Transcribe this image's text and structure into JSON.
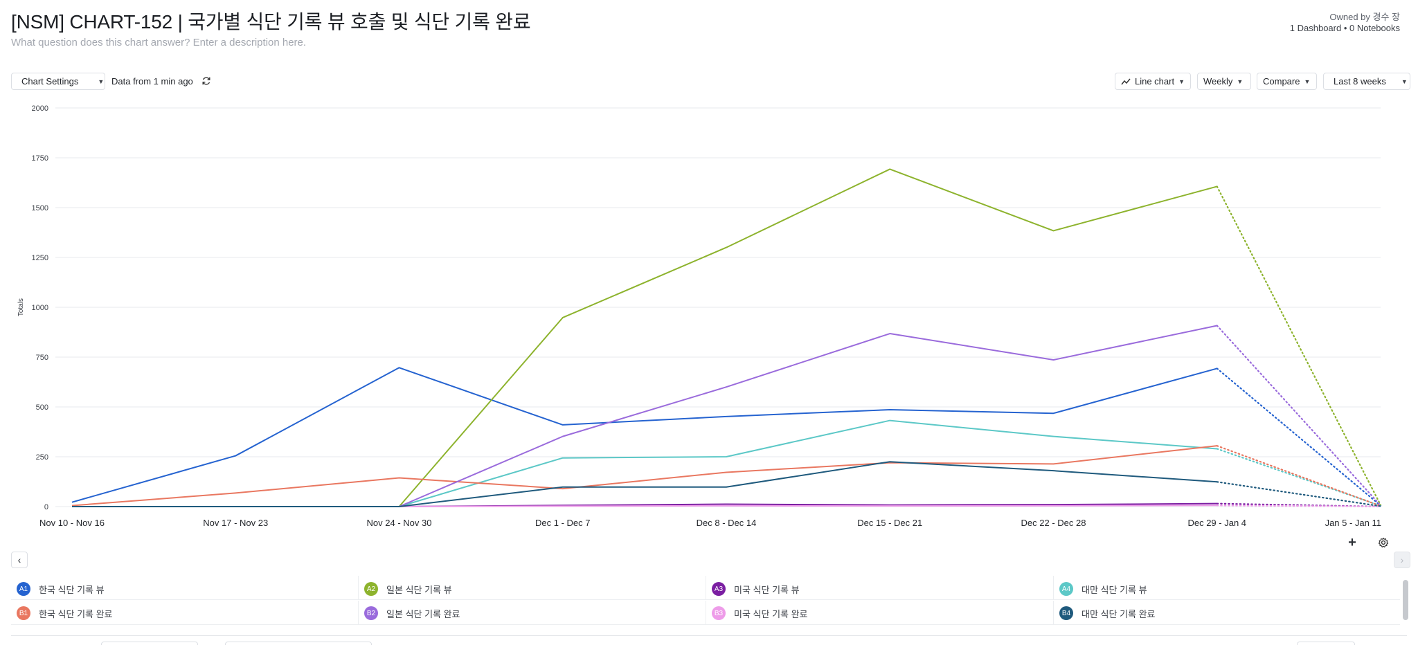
{
  "header": {
    "title": "[NSM] CHART-152 | 국가별 식단 기록 뷰 호출 및 식단 기록 완료",
    "description_placeholder": "What question does this chart answer? Enter a description here.",
    "owner": "Owned by 경수 장",
    "meta": "1 Dashboard • 0 Notebooks"
  },
  "toolbar": {
    "chart_settings_label": "Chart Settings",
    "data_freshness": "Data from 1 min ago",
    "chart_type_label": "Line chart",
    "interval_label": "Weekly",
    "compare_label": "Compare",
    "date_range_label": "Last 8 weeks"
  },
  "icons": {
    "settings": "sliders-icon",
    "refresh": "refresh-icon",
    "line_chart": "line-chart-icon",
    "calendar": "calendar-icon",
    "add": "plus-icon",
    "gear": "gear-icon",
    "prev": "chevron-left-icon",
    "next": "chevron-right-icon"
  },
  "chart_data": {
    "type": "line",
    "ylabel": "Totals",
    "xlabel": "",
    "ylim": [
      0,
      2000
    ],
    "yticks": [
      0,
      250,
      500,
      750,
      1000,
      1250,
      1500,
      1750,
      2000
    ],
    "grid": true,
    "categories": [
      "Nov 10 - Nov 16",
      "Nov 17 - Nov 23",
      "Nov 24 - Nov 30",
      "Dec 1 - Dec 7",
      "Dec 8 - Dec 14",
      "Dec 15 - Dec 21",
      "Dec 22 - Dec 28",
      "Dec 29 - Jan 4",
      "Jan 5 - Jan 11"
    ],
    "partial_from_index": 7,
    "series": [
      {
        "id": "A1",
        "name": "한국 식단 기록 뷰",
        "color": "#2563d0",
        "values": [
          22,
          255,
          697,
          410,
          452,
          486,
          468,
          693,
          5
        ]
      },
      {
        "id": "A2",
        "name": "일본 식단 기록 뷰",
        "color": "#8db32d",
        "values": [
          0,
          0,
          0,
          948,
          1300,
          1693,
          1384,
          1606,
          8
        ]
      },
      {
        "id": "A3",
        "name": "미국 식단 기록 뷰",
        "color": "#7b1fa2",
        "values": [
          0,
          0,
          0,
          6,
          12,
          8,
          10,
          15,
          0
        ]
      },
      {
        "id": "A4",
        "name": "대만 식단 기록 뷰",
        "color": "#5cc8c7",
        "values": [
          0,
          0,
          0,
          244,
          250,
          432,
          352,
          290,
          4
        ]
      },
      {
        "id": "B1",
        "name": "한국 식단 기록 완료",
        "color": "#e97760",
        "values": [
          5,
          68,
          144,
          90,
          172,
          220,
          214,
          305,
          3
        ]
      },
      {
        "id": "B2",
        "name": "일본 식단 기록 완료",
        "color": "#9a6bdc",
        "values": [
          0,
          0,
          0,
          352,
          600,
          868,
          736,
          908,
          6
        ]
      },
      {
        "id": "B3",
        "name": "미국 식단 기록 완료",
        "color": "#ee9ce9",
        "values": [
          0,
          0,
          0,
          2,
          4,
          3,
          4,
          6,
          0
        ]
      },
      {
        "id": "B4",
        "name": "대만 식단 기록 완료",
        "color": "#1f5a7d",
        "values": [
          0,
          0,
          0,
          98,
          98,
          225,
          180,
          124,
          2
        ]
      }
    ]
  }
}
